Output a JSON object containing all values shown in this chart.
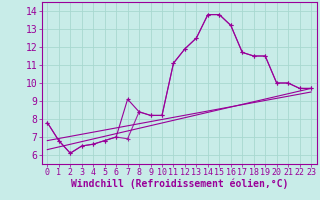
{
  "xlabel": "Windchill (Refroidissement éolien,°C)",
  "bg_color": "#c8ece8",
  "grid_color": "#a8d8d0",
  "line_color": "#990099",
  "xlim": [
    -0.5,
    23.5
  ],
  "ylim": [
    5.5,
    14.5
  ],
  "xticks": [
    0,
    1,
    2,
    3,
    4,
    5,
    6,
    7,
    8,
    9,
    10,
    11,
    12,
    13,
    14,
    15,
    16,
    17,
    18,
    19,
    20,
    21,
    22,
    23
  ],
  "yticks": [
    6,
    7,
    8,
    9,
    10,
    11,
    12,
    13,
    14
  ],
  "line1_x": [
    0,
    1,
    2,
    3,
    4,
    5,
    6,
    7,
    8,
    9,
    10,
    11,
    12,
    13,
    14,
    15,
    16,
    17,
    18,
    19,
    20,
    21,
    22,
    23
  ],
  "line1_y": [
    7.8,
    6.8,
    6.1,
    6.5,
    6.6,
    6.8,
    7.0,
    9.1,
    8.4,
    8.2,
    8.2,
    11.1,
    11.9,
    12.5,
    13.8,
    13.8,
    13.2,
    11.7,
    11.5,
    11.5,
    10.0,
    10.0,
    9.7,
    9.7
  ],
  "line2_x": [
    0,
    1,
    2,
    3,
    4,
    5,
    6,
    7,
    8,
    9,
    10,
    11,
    12,
    13,
    14,
    15,
    16,
    17,
    18,
    19,
    20,
    21,
    22,
    23
  ],
  "line2_y": [
    7.8,
    6.8,
    6.1,
    6.5,
    6.6,
    6.8,
    7.0,
    6.9,
    8.4,
    8.2,
    8.2,
    11.1,
    11.9,
    12.5,
    13.8,
    13.8,
    13.2,
    11.7,
    11.5,
    11.5,
    10.0,
    10.0,
    9.7,
    9.7
  ],
  "trend1_x": [
    0,
    23
  ],
  "trend1_y": [
    6.8,
    9.5
  ],
  "trend2_x": [
    0,
    23
  ],
  "trend2_y": [
    6.3,
    9.7
  ],
  "font_size_xlabel": 7,
  "font_size_yticks": 7,
  "font_size_xticks": 6
}
